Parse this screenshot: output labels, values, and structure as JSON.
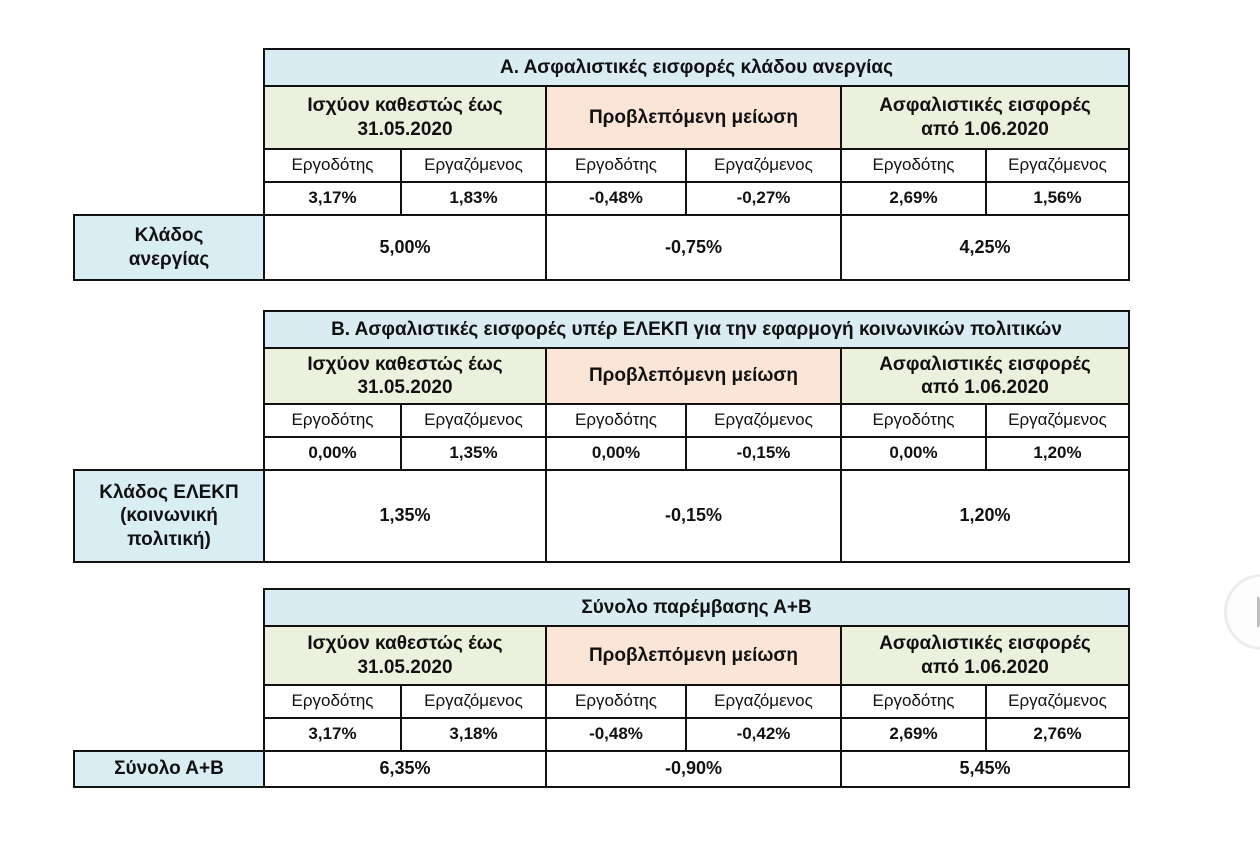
{
  "colors": {
    "title_bg": "#d9ecf2",
    "green_bg": "#ebf1dd",
    "peach_bg": "#fbe5d6",
    "label_bg": "#d9eef3",
    "border_color": "#111111",
    "arrow_ring": "#ededed",
    "arrow_fill": "#c0c0c0"
  },
  "chart_data": [
    {
      "type": "table",
      "title": "Α. Ασφαλιστικές εισφορές κλάδου ανεργίας",
      "column_groups": [
        {
          "label": "Ισχύον καθεστώς έως\n31.05.2020",
          "tone": "green"
        },
        {
          "label": "Προβλεπόμενη μείωση",
          "tone": "peach"
        },
        {
          "label": "Ασφαλιστικές εισφορές\nαπό 1.06.2020",
          "tone": "green"
        }
      ],
      "sub_columns": [
        "Εργοδότης",
        "Εργαζόμενος",
        "Εργοδότης",
        "Εργαζόμενος",
        "Εργοδότης",
        "Εργαζόμενος"
      ],
      "values": [
        "3,17%",
        "1,83%",
        "-0,48%",
        "-0,27%",
        "2,69%",
        "1,56%"
      ],
      "row_label": "Κλάδος\nανεργίας",
      "totals": [
        "5,00%",
        "-0,75%",
        "4,25%"
      ]
    },
    {
      "type": "table",
      "title": "Β. Ασφαλιστικές εισφορές υπέρ ΕΛΕΚΠ για την εφαρμογή κοινωνικών πολιτικών",
      "column_groups": [
        {
          "label": "Ισχύον καθεστώς έως\n31.05.2020",
          "tone": "green"
        },
        {
          "label": "Προβλεπόμενη μείωση",
          "tone": "peach"
        },
        {
          "label": "Ασφαλιστικές εισφορές\nαπό 1.06.2020",
          "tone": "green"
        }
      ],
      "sub_columns": [
        "Εργοδότης",
        "Εργαζόμενος",
        "Εργοδότης",
        "Εργαζόμενος",
        "Εργοδότης",
        "Εργαζόμενος"
      ],
      "values": [
        "0,00%",
        "1,35%",
        "0,00%",
        "-0,15%",
        "0,00%",
        "1,20%"
      ],
      "row_label": "Κλάδος ΕΛΕΚΠ\n(κοινωνική\nπολιτική)",
      "totals": [
        "1,35%",
        "-0,15%",
        "1,20%"
      ]
    },
    {
      "type": "table",
      "title": "Σύνολο παρέμβασης Α+Β",
      "column_groups": [
        {
          "label": "Ισχύον καθεστώς έως\n31.05.2020",
          "tone": "green"
        },
        {
          "label": "Προβλεπόμενη μείωση",
          "tone": "peach"
        },
        {
          "label": "Ασφαλιστικές εισφορές\nαπό 1.06.2020",
          "tone": "green"
        }
      ],
      "sub_columns": [
        "Εργοδότης",
        "Εργαζόμενος",
        "Εργοδότης",
        "Εργαζόμενος",
        "Εργοδότης",
        "Εργαζόμενος"
      ],
      "values": [
        "3,17%",
        "3,18%",
        "-0,48%",
        "-0,42%",
        "2,69%",
        "2,76%"
      ],
      "row_label": "Σύνολο Α+Β",
      "totals": [
        "6,35%",
        "-0,90%",
        "5,45%"
      ]
    }
  ],
  "carousel": {
    "next_icon": "play-right-icon"
  }
}
